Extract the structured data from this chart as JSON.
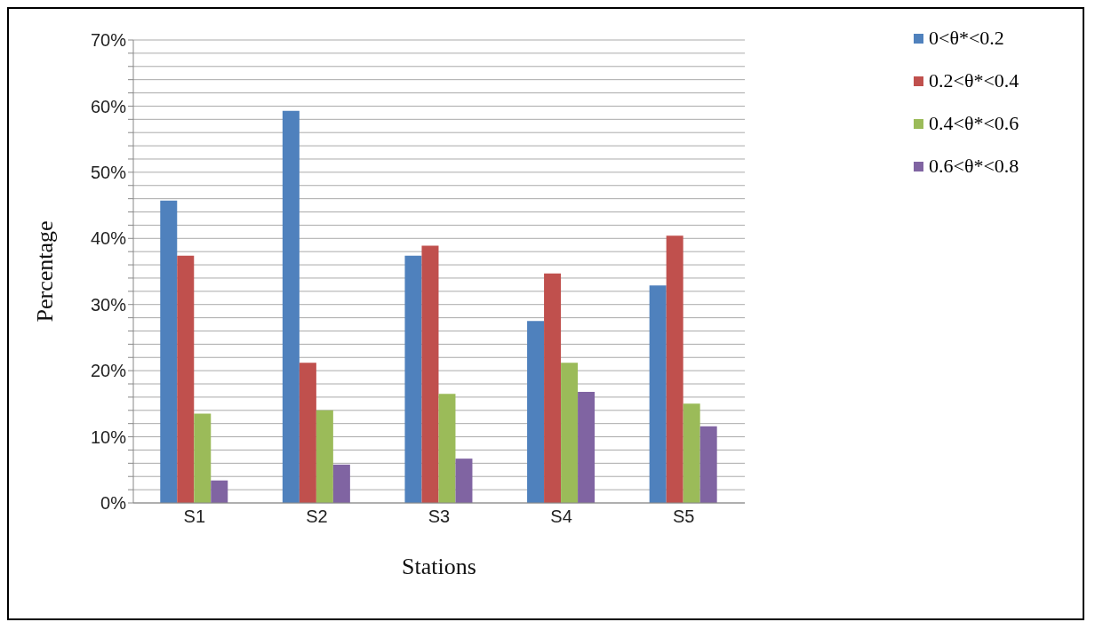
{
  "chart_data": {
    "type": "bar",
    "xlabel": "Stations",
    "ylabel": "Percentage",
    "categories": [
      "S1",
      "S2",
      "S3",
      "S4",
      "S5"
    ],
    "series": [
      {
        "name": "0<θ*<0.2",
        "color": "#4f81bd",
        "values": [
          45.7,
          59.3,
          37.4,
          27.5,
          32.9
        ]
      },
      {
        "name": "0.2<θ*<0.4",
        "color": "#c0504d",
        "values": [
          37.4,
          21.2,
          38.9,
          34.7,
          40.4
        ]
      },
      {
        "name": "0.4<θ*<0.6",
        "color": "#9bbb59",
        "values": [
          13.5,
          14.0,
          16.5,
          21.2,
          15.0
        ]
      },
      {
        "name": "0.6<θ*<0.8",
        "color": "#8064a2",
        "values": [
          3.4,
          5.8,
          6.7,
          16.8,
          11.6
        ]
      }
    ],
    "ylim": [
      0,
      70
    ],
    "yticks": [
      {
        "value": 0,
        "label": "0%"
      },
      {
        "value": 2,
        "label": null
      },
      {
        "value": 4,
        "label": null
      },
      {
        "value": 6,
        "label": null
      },
      {
        "value": 8,
        "label": null
      },
      {
        "value": 10,
        "label": "10%"
      },
      {
        "value": 12,
        "label": null
      },
      {
        "value": 14,
        "label": null
      },
      {
        "value": 16,
        "label": null
      },
      {
        "value": 18,
        "label": null
      },
      {
        "value": 20,
        "label": "20%"
      },
      {
        "value": 22,
        "label": null
      },
      {
        "value": 24,
        "label": null
      },
      {
        "value": 26,
        "label": null
      },
      {
        "value": 28,
        "label": null
      },
      {
        "value": 30,
        "label": "30%"
      },
      {
        "value": 32,
        "label": null
      },
      {
        "value": 34,
        "label": null
      },
      {
        "value": 36,
        "label": null
      },
      {
        "value": 38,
        "label": null
      },
      {
        "value": 40,
        "label": "40%"
      },
      {
        "value": 42,
        "label": null
      },
      {
        "value": 44,
        "label": null
      },
      {
        "value": 46,
        "label": null
      },
      {
        "value": 48,
        "label": null
      },
      {
        "value": 50,
        "label": "50%"
      },
      {
        "value": 52,
        "label": null
      },
      {
        "value": 54,
        "label": null
      },
      {
        "value": 56,
        "label": null
      },
      {
        "value": 58,
        "label": null
      },
      {
        "value": 60,
        "label": "60%"
      },
      {
        "value": 62,
        "label": null
      },
      {
        "value": 64,
        "label": null
      },
      {
        "value": 66,
        "label": null
      },
      {
        "value": 68,
        "label": null
      },
      {
        "value": 70,
        "label": "70%"
      }
    ],
    "grid": "y",
    "legend": "top right"
  }
}
